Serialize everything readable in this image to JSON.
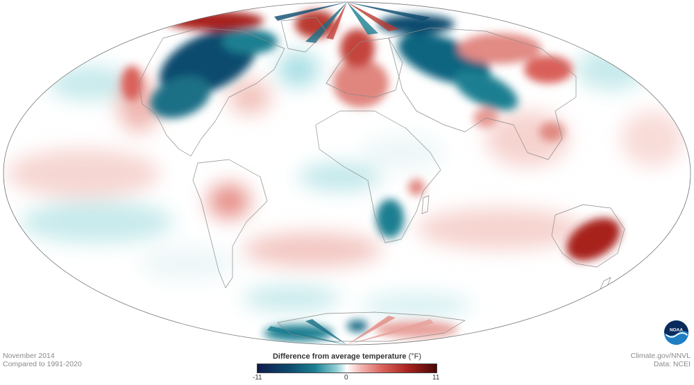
{
  "map": {
    "projection": "Mollweide",
    "variable": "Difference from average temperature",
    "color_scale": {
      "min": -11,
      "mid": 0,
      "max": 11,
      "unit": "(°F)"
    },
    "colors": {
      "strong_cold": "#0d4b6e",
      "cold": "#1a7f91",
      "light_cold": "#bde7ea",
      "neutral": "#ffffff",
      "light_warm": "#f6d0cc",
      "warm": "#d9615a",
      "strong_warm": "#8e1a18"
    },
    "notable_anomalies": [
      {
        "region": "Central and eastern North America",
        "sign": "colder"
      },
      {
        "region": "Central Siberia",
        "sign": "colder"
      },
      {
        "region": "Europe",
        "sign": "warmer"
      },
      {
        "region": "Alaska",
        "sign": "warmer"
      },
      {
        "region": "Eastern Australia",
        "sign": "warmer"
      },
      {
        "region": "Southern Africa",
        "sign": "colder"
      }
    ]
  },
  "caption_left": {
    "date": "November 2014",
    "baseline": "Compared to 1991-2020"
  },
  "caption_right": {
    "source": "Climate.gov/NNVL",
    "data": "Data: NCEI"
  },
  "legend": {
    "title": "Difference from average temperature",
    "unit": "(°F)",
    "ticks": {
      "min": "-11",
      "mid": "0",
      "max": "11"
    }
  },
  "logo": {
    "text": "NOAA",
    "icon": "noaa-logo-icon"
  }
}
